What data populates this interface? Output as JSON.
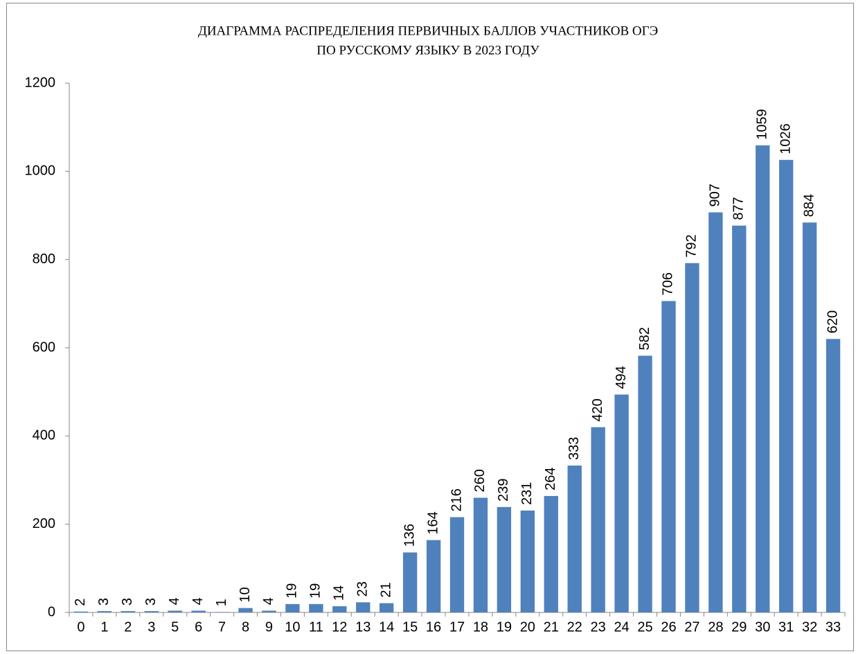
{
  "chart_data": {
    "type": "bar",
    "title": [
      "ДИАГРАММА РАСПРЕДЕЛЕНИЯ ПЕРВИЧНЫХ БАЛЛОВ УЧАСТНИКОВ ОГЭ",
      "ПО РУССКОМУ ЯЗЫКУ В 2023 ГОДУ"
    ],
    "categories": [
      "0",
      "1",
      "2",
      "3",
      "5",
      "6",
      "7",
      "8",
      "9",
      "10",
      "11",
      "12",
      "13",
      "14",
      "15",
      "16",
      "17",
      "18",
      "19",
      "20",
      "21",
      "22",
      "23",
      "24",
      "25",
      "26",
      "27",
      "28",
      "29",
      "30",
      "31",
      "32",
      "33"
    ],
    "values": [
      2,
      3,
      3,
      3,
      4,
      4,
      1,
      10,
      4,
      19,
      19,
      14,
      23,
      21,
      136,
      164,
      216,
      260,
      239,
      231,
      264,
      333,
      420,
      494,
      582,
      706,
      792,
      907,
      877,
      1059,
      1026,
      884,
      620
    ],
    "color": "#4f81bd",
    "ylim": [
      0,
      1200
    ],
    "yticks": [
      0,
      200,
      400,
      600,
      800,
      1000,
      1200
    ],
    "grid": false
  }
}
